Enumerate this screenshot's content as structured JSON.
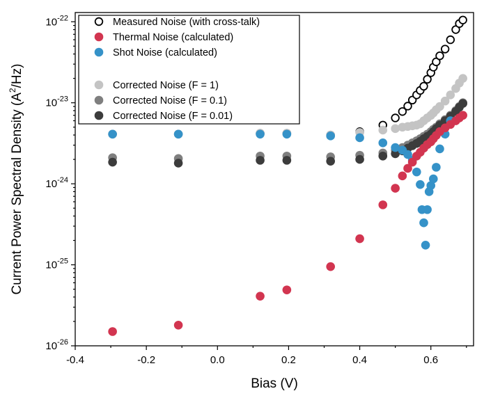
{
  "chart_data": {
    "type": "scatter",
    "xlabel": "Bias (V)",
    "ylabel_main": "Current Power Spectral Density (A",
    "ylabel_sup": "2",
    "ylabel_end": "/Hz)",
    "xlim": [
      -0.4,
      0.72
    ],
    "ylim": [
      1e-26,
      1.3e-22
    ],
    "yscale": "log",
    "xticks": [
      -0.4,
      -0.2,
      0.0,
      0.2,
      0.4,
      0.6
    ],
    "xtick_labels": [
      "-0.4",
      "-0.2",
      "0.0",
      "0.2",
      "0.4",
      "0.6"
    ],
    "yticks": [
      {
        "value": 1e-26,
        "base": "10",
        "exp": "-26"
      },
      {
        "value": 1e-25,
        "base": "10",
        "exp": "-25"
      },
      {
        "value": 1e-24,
        "base": "10",
        "exp": "-24"
      },
      {
        "value": 1e-23,
        "base": "10",
        "exp": "-23"
      },
      {
        "value": 1e-22,
        "base": "10",
        "exp": "-22"
      }
    ],
    "legend_position": "top-left",
    "series": [
      {
        "name": "Measured Noise (with cross-talk)",
        "color": "#000000",
        "marker": "open-circle",
        "x": [
          -0.295,
          -0.11,
          0.12,
          0.195,
          0.318,
          0.4,
          0.465,
          0.5,
          0.52,
          0.535,
          0.548,
          0.56,
          0.57,
          0.58,
          0.59,
          0.6,
          0.607,
          0.615,
          0.625,
          0.64,
          0.655,
          0.67,
          0.68,
          0.69
        ],
        "y": [
          4.1e-24,
          4.1e-24,
          4.2e-24,
          4.2e-24,
          4e-24,
          4.4e-24,
          5.3e-24,
          6.5e-24,
          7.8e-24,
          9.1e-24,
          1.08e-23,
          1.25e-23,
          1.42e-23,
          1.6e-23,
          1.95e-23,
          2.35e-23,
          2.75e-23,
          3.2e-23,
          3.8e-23,
          4.6e-23,
          6e-23,
          8e-23,
          9.5e-23,
          1.05e-22
        ]
      },
      {
        "name": "Thermal Noise (calculated)",
        "color": "#d23550",
        "marker": "filled-circle",
        "x": [
          -0.295,
          -0.11,
          0.12,
          0.195,
          0.318,
          0.4,
          0.465,
          0.5,
          0.52,
          0.535,
          0.548,
          0.56,
          0.57,
          0.58,
          0.59,
          0.6,
          0.607,
          0.615,
          0.625,
          0.64,
          0.655,
          0.67,
          0.68,
          0.69
        ],
        "y": [
          1.5e-26,
          1.8e-26,
          4.1e-26,
          4.9e-26,
          9.5e-26,
          2.1e-25,
          5.5e-25,
          8.8e-25,
          1.25e-24,
          1.55e-24,
          1.85e-24,
          2.2e-24,
          2.45e-24,
          2.75e-24,
          3.05e-24,
          3.3e-24,
          3.6e-24,
          3.95e-24,
          4.4e-24,
          4.9e-24,
          5.4e-24,
          6e-24,
          6.5e-24,
          7e-24
        ]
      },
      {
        "name": "Shot Noise (calculated)",
        "color": "#3592c8",
        "marker": "filled-circle",
        "x": [
          -0.295,
          -0.11,
          0.12,
          0.195,
          0.318,
          0.4,
          0.465,
          0.5,
          0.52,
          0.535,
          0.548,
          0.56,
          0.57,
          0.575,
          0.58,
          0.585,
          0.59,
          0.595,
          0.6,
          0.607,
          0.615,
          0.625,
          0.64,
          0.655
        ],
        "y": [
          4.1e-24,
          4.1e-24,
          4.1e-24,
          4.1e-24,
          3.9e-24,
          3.7e-24,
          3.2e-24,
          2.8e-24,
          2.6e-24,
          2.3e-24,
          1.95e-24,
          1.4e-24,
          9.8e-25,
          4.8e-25,
          3.3e-25,
          1.75e-25,
          4.8e-25,
          8e-25,
          9.5e-25,
          1.15e-24,
          1.6e-24,
          2.7e-24,
          4.1e-24,
          6e-24
        ]
      },
      {
        "name": "Corrected Noise (F = 1)",
        "color": "#c4c4c4",
        "marker": "filled-circle",
        "x": [
          -0.295,
          -0.11,
          0.12,
          0.195,
          0.318,
          0.4,
          0.465,
          0.5,
          0.52,
          0.535,
          0.548,
          0.56,
          0.57,
          0.58,
          0.59,
          0.6,
          0.607,
          0.615,
          0.625,
          0.64,
          0.655,
          0.67,
          0.68,
          0.69
        ],
        "y": [
          4.1e-24,
          4.1e-24,
          4.2e-24,
          4.2e-24,
          4e-24,
          4.3e-24,
          4.6e-24,
          4.8e-24,
          5e-24,
          5.1e-24,
          5.2e-24,
          5.3e-24,
          5.5e-24,
          6e-24,
          6.5e-24,
          7e-24,
          7.5e-24,
          8.2e-24,
          9e-24,
          1.05e-23,
          1.25e-23,
          1.5e-23,
          1.75e-23,
          2e-23
        ]
      },
      {
        "name": "Corrected Noise (F = 0.1)",
        "color": "#7f7f7f",
        "marker": "filled-circle",
        "x": [
          -0.295,
          -0.11,
          0.12,
          0.195,
          0.318,
          0.4,
          0.465,
          0.5,
          0.52,
          0.535,
          0.548,
          0.56,
          0.57,
          0.58,
          0.59,
          0.6,
          0.607,
          0.615,
          0.625,
          0.64,
          0.655,
          0.67,
          0.68,
          0.69
        ],
        "y": [
          2.1e-24,
          2.05e-24,
          2.2e-24,
          2.2e-24,
          2.15e-24,
          2.25e-24,
          2.4e-24,
          2.6e-24,
          2.8e-24,
          3e-24,
          3.2e-24,
          3.4e-24,
          3.6e-24,
          3.85e-24,
          4.1e-24,
          4.4e-24,
          4.7e-24,
          5e-24,
          5.5e-24,
          6.2e-24,
          7e-24,
          8e-24,
          9e-24,
          1e-23
        ]
      },
      {
        "name": "Corrected Noise (F = 0.01)",
        "color": "#3c3c3c",
        "marker": "filled-circle",
        "x": [
          -0.295,
          -0.11,
          0.12,
          0.195,
          0.318,
          0.4,
          0.465,
          0.5,
          0.52,
          0.535,
          0.548,
          0.56,
          0.57,
          0.58,
          0.59,
          0.6,
          0.607,
          0.615,
          0.625,
          0.64,
          0.655,
          0.67,
          0.68,
          0.69
        ],
        "y": [
          1.85e-24,
          1.8e-24,
          1.95e-24,
          1.95e-24,
          1.9e-24,
          2e-24,
          2.2e-24,
          2.35e-24,
          2.55e-24,
          2.75e-24,
          2.95e-24,
          3.15e-24,
          3.35e-24,
          3.6e-24,
          3.85e-24,
          4.1e-24,
          4.4e-24,
          4.8e-24,
          5.3e-24,
          6e-24,
          6.8e-24,
          7.8e-24,
          8.8e-24,
          9.8e-24
        ]
      }
    ]
  }
}
